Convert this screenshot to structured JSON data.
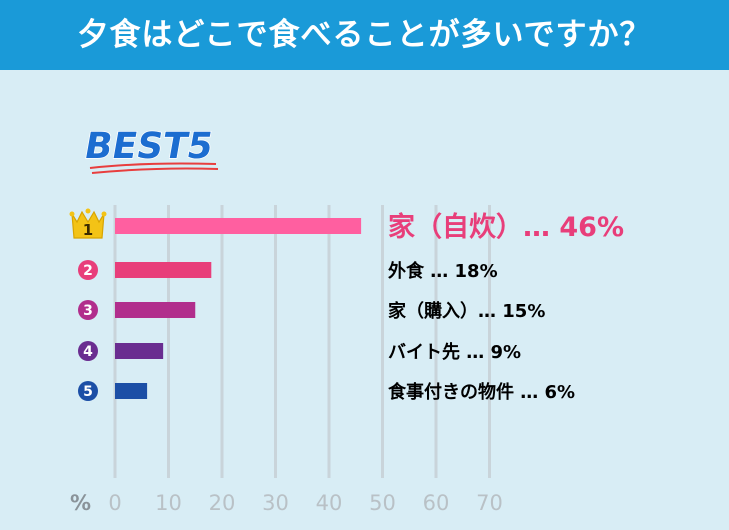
{
  "title": "夕食はどこで食べることが多いですか？",
  "badge": "BEST5",
  "chart_data": {
    "type": "bar",
    "orientation": "horizontal",
    "categories": [
      "家（自炊）",
      "外食",
      "家（購入）",
      "バイト先",
      "食事付きの物件"
    ],
    "values": [
      46,
      18,
      15,
      9,
      6
    ],
    "value_labels": [
      "家（自炊）…  46%",
      "外食 …  18%",
      "家（購入）…  15%",
      "バイト先 …  9%",
      "食事付きの物件 …  6%"
    ],
    "ranks": [
      "1",
      "2",
      "3",
      "4",
      "5"
    ],
    "xlabel": "%",
    "xlim": [
      0,
      70
    ],
    "xticks": [
      0,
      10,
      20,
      30,
      40,
      50,
      60,
      70
    ],
    "grid": true,
    "colors": {
      "bars": [
        "#ff5fa0",
        "#e83e7a",
        "#b12e8c",
        "#6a2d90",
        "#1c4fa6"
      ],
      "rank_circles": [
        "#f3c316",
        "#e83e7a",
        "#b12e8c",
        "#6a2d90",
        "#1c4fa6"
      ],
      "labels": [
        "#e83e7a",
        "#000000",
        "#000000",
        "#000000",
        "#000000"
      ],
      "title_bar": "#1a9ad8",
      "grid": "#c9d4da",
      "badge": "#1c6dd0"
    }
  }
}
